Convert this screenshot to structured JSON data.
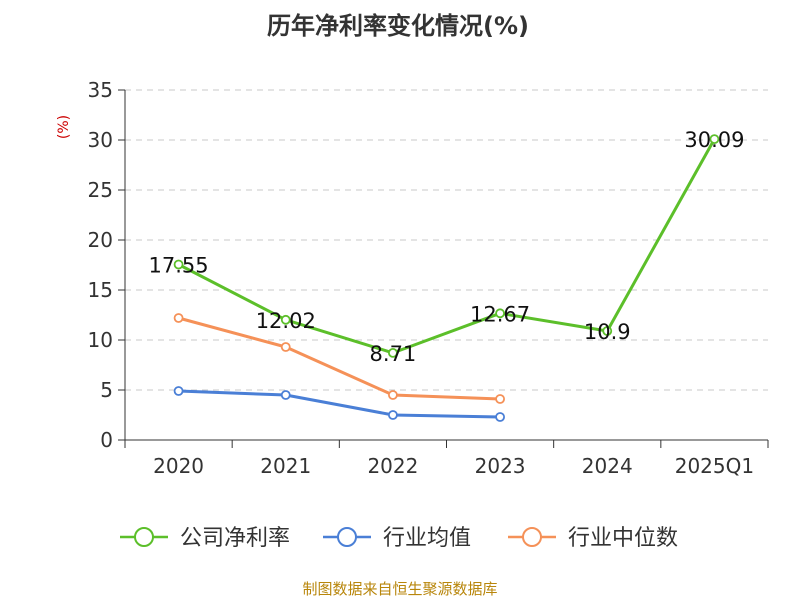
{
  "chart_data": {
    "type": "line",
    "title": "历年净利率变化情况(%)",
    "ylabel": "(%)",
    "xlabel": "",
    "categories": [
      "2020",
      "2021",
      "2022",
      "2023",
      "2024",
      "2025Q1"
    ],
    "ylim": [
      0,
      35
    ],
    "yticks": [
      0,
      5,
      10,
      15,
      20,
      25,
      30,
      35
    ],
    "grid": true,
    "legend_position": "bottom",
    "series": [
      {
        "name": "公司净利率",
        "color": "#5cbf2a",
        "values": [
          17.55,
          12.02,
          8.71,
          12.67,
          10.9,
          30.09
        ],
        "labels": [
          "17.55",
          "12.02",
          "8.71",
          "12.67",
          "10.9",
          "30.09"
        ]
      },
      {
        "name": "行业均值",
        "color": "#4a7fd6",
        "values": [
          4.9,
          4.5,
          2.5,
          2.3,
          null,
          null
        ]
      },
      {
        "name": "行业中位数",
        "color": "#f59158",
        "values": [
          12.2,
          9.3,
          4.5,
          4.1,
          null,
          null
        ]
      }
    ],
    "source": "制图数据来自恒生聚源数据库"
  }
}
